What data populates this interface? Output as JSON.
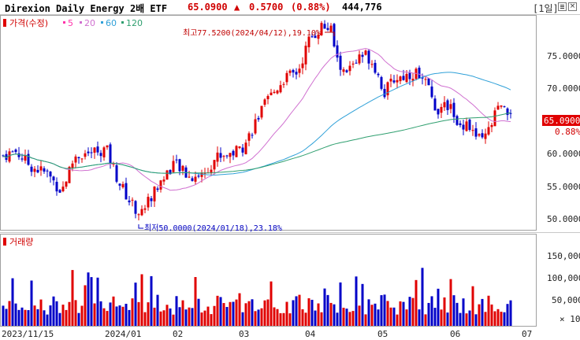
{
  "header": {
    "name": "Direxion Daily Energy 2배 ETF",
    "price": "65.0900",
    "change_arrow": "▲",
    "change": "0.5700",
    "change_pct": "(0.88%)",
    "volume": "444,776",
    "period_button": "[1일]",
    "icons": [
      "menu-icon",
      "close-icon"
    ]
  },
  "colors": {
    "up": "#e00000",
    "down": "#0000c8",
    "ma5": "#ff33aa",
    "ma20": "#d070d0",
    "ma60": "#2fa0d8",
    "ma120": "#2f9f6f",
    "price_tag_bg": "#e00000"
  },
  "price_panel": {
    "legend": {
      "label": "가격(수정)",
      "items": [
        {
          "label": "5",
          "color": "#ff33aa"
        },
        {
          "label": "20",
          "color": "#d070d0"
        },
        {
          "label": "60",
          "color": "#2fa0d8"
        },
        {
          "label": "120",
          "color": "#2f9f6f"
        }
      ]
    },
    "y_ticks": [
      "75.0000",
      "70.0000",
      "65.0000",
      "60.0000",
      "55.0000",
      "50.0000"
    ],
    "current_price_tag": "65.0900",
    "current_pct_tag": "0.88%",
    "high_annotation": "최고77.5200(2024/04/12),19.10%",
    "low_annotation": "최저50.0000(2024/01/18),23.18%"
  },
  "volume_panel": {
    "legend": "거래량",
    "y_ticks": [
      "150,000",
      "100,000",
      "50,000"
    ],
    "unit": "× 10"
  },
  "x_ticks": [
    "2023/11/15",
    "2024/01",
    "02",
    "03",
    "04",
    "05",
    "06",
    "07"
  ],
  "chart_data": {
    "type": "candlestick",
    "title": "Direxion Daily Energy 2배 ETF",
    "ylim": [
      48.0,
      78.5
    ],
    "volume_ylim": [
      0,
      180000
    ],
    "x_ticks": [
      "2023/11/15",
      "2024/01",
      "02",
      "03",
      "04",
      "05",
      "06",
      "07"
    ],
    "y_ticks": [
      75,
      70,
      65,
      60,
      55,
      50
    ],
    "volume_y_ticks": [
      150000,
      100000,
      50000
    ],
    "high": {
      "value": 77.52,
      "date": "2024/04/12",
      "pct": 19.1
    },
    "low": {
      "value": 50.0,
      "date": "2024/01/18",
      "pct": 23.18
    },
    "last": {
      "price": 65.09,
      "change": 0.57,
      "change_pct": 0.88,
      "volume": 444776
    },
    "moving_averages": [
      5,
      20,
      60,
      120
    ]
  }
}
